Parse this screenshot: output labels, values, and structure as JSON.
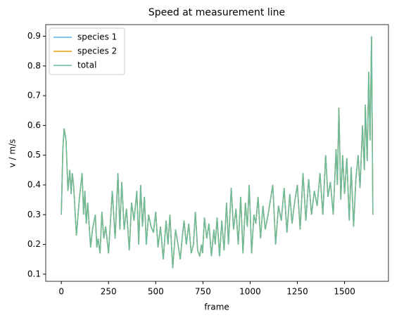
{
  "chart_data": {
    "type": "line",
    "title": "Speed at measurement line",
    "xlabel": "frame",
    "ylabel": "v / m/s",
    "x": [
      0,
      8,
      15,
      25,
      35,
      45,
      52,
      58,
      65,
      80,
      95,
      110,
      118,
      125,
      132,
      140,
      155,
      165,
      180,
      188,
      195,
      205,
      215,
      225,
      235,
      250,
      270,
      285,
      300,
      310,
      320,
      333,
      345,
      360,
      372,
      385,
      400,
      410,
      420,
      430,
      440,
      450,
      462,
      475,
      488,
      500,
      512,
      525,
      540,
      555,
      565,
      575,
      590,
      605,
      618,
      630,
      640,
      650,
      662,
      675,
      688,
      700,
      710,
      722,
      733,
      742,
      748,
      758,
      770,
      782,
      795,
      808,
      815,
      825,
      838,
      850,
      862,
      875,
      885,
      900,
      912,
      925,
      937,
      950,
      962,
      975,
      985,
      995,
      1008,
      1020,
      1030,
      1042,
      1055,
      1068,
      1080,
      1095,
      1120,
      1135,
      1150,
      1165,
      1180,
      1195,
      1210,
      1222,
      1235,
      1250,
      1265,
      1280,
      1295,
      1310,
      1325,
      1340,
      1355,
      1370,
      1385,
      1400,
      1412,
      1425,
      1440,
      1455,
      1462,
      1470,
      1480,
      1490,
      1500,
      1512,
      1525,
      1535,
      1548,
      1560,
      1572,
      1582,
      1595,
      1605,
      1610,
      1620,
      1628,
      1635,
      1643,
      1650
    ],
    "series": [
      {
        "name": "species 1",
        "color": "#56b4e9",
        "values": [
          0.3,
          0.52,
          0.59,
          0.55,
          0.38,
          0.45,
          0.37,
          0.44,
          0.4,
          0.23,
          0.35,
          0.44,
          0.3,
          0.38,
          0.27,
          0.34,
          0.19,
          0.25,
          0.3,
          0.19,
          0.22,
          0.17,
          0.31,
          0.22,
          0.26,
          0.17,
          0.38,
          0.22,
          0.44,
          0.25,
          0.41,
          0.25,
          0.32,
          0.18,
          0.34,
          0.28,
          0.38,
          0.2,
          0.4,
          0.26,
          0.36,
          0.2,
          0.3,
          0.26,
          0.24,
          0.31,
          0.19,
          0.26,
          0.15,
          0.28,
          0.2,
          0.3,
          0.12,
          0.25,
          0.2,
          0.15,
          0.22,
          0.28,
          0.2,
          0.27,
          0.17,
          0.2,
          0.31,
          0.18,
          0.16,
          0.2,
          0.17,
          0.29,
          0.22,
          0.27,
          0.16,
          0.25,
          0.2,
          0.29,
          0.16,
          0.28,
          0.18,
          0.34,
          0.2,
          0.39,
          0.25,
          0.32,
          0.2,
          0.36,
          0.17,
          0.34,
          0.26,
          0.4,
          0.17,
          0.3,
          0.27,
          0.36,
          0.22,
          0.33,
          0.25,
          0.3,
          0.4,
          0.2,
          0.33,
          0.28,
          0.39,
          0.24,
          0.37,
          0.27,
          0.34,
          0.4,
          0.25,
          0.44,
          0.28,
          0.42,
          0.3,
          0.38,
          0.33,
          0.44,
          0.3,
          0.5,
          0.36,
          0.41,
          0.3,
          0.52,
          0.4,
          0.66,
          0.35,
          0.5,
          0.37,
          0.49,
          0.28,
          0.46,
          0.26,
          0.42,
          0.5,
          0.39,
          0.6,
          0.45,
          0.67,
          0.48,
          0.78,
          0.55,
          0.9,
          0.3
        ]
      },
      {
        "name": "species 2",
        "color": "#e69f00",
        "values": [
          0.3,
          0.52,
          0.59,
          0.55,
          0.38,
          0.45,
          0.37,
          0.44,
          0.4,
          0.23,
          0.35,
          0.44,
          0.3,
          0.38,
          0.27,
          0.34,
          0.19,
          0.25,
          0.3,
          0.19,
          0.22,
          0.17,
          0.31,
          0.22,
          0.26,
          0.17,
          0.38,
          0.22,
          0.44,
          0.25,
          0.41,
          0.25,
          0.32,
          0.18,
          0.34,
          0.28,
          0.38,
          0.2,
          0.4,
          0.26,
          0.36,
          0.2,
          0.3,
          0.26,
          0.24,
          0.31,
          0.19,
          0.26,
          0.15,
          0.28,
          0.2,
          0.3,
          0.12,
          0.25,
          0.2,
          0.15,
          0.22,
          0.28,
          0.2,
          0.27,
          0.17,
          0.2,
          0.31,
          0.18,
          0.16,
          0.2,
          0.17,
          0.29,
          0.22,
          0.27,
          0.16,
          0.25,
          0.2,
          0.29,
          0.16,
          0.28,
          0.18,
          0.34,
          0.2,
          0.39,
          0.25,
          0.32,
          0.2,
          0.36,
          0.17,
          0.34,
          0.26,
          0.4,
          0.17,
          0.3,
          0.27,
          0.36,
          0.22,
          0.33,
          0.25,
          0.3,
          0.4,
          0.2,
          0.33,
          0.28,
          0.39,
          0.24,
          0.37,
          0.27,
          0.34,
          0.4,
          0.25,
          0.44,
          0.28,
          0.42,
          0.3,
          0.38,
          0.33,
          0.44,
          0.3,
          0.5,
          0.36,
          0.41,
          0.3,
          0.52,
          0.4,
          0.66,
          0.35,
          0.5,
          0.37,
          0.49,
          0.28,
          0.46,
          0.26,
          0.42,
          0.5,
          0.39,
          0.6,
          0.45,
          0.67,
          0.48,
          0.78,
          0.55,
          0.9,
          0.3
        ]
      },
      {
        "name": "total",
        "color": "#6dbb9c",
        "values": [
          0.3,
          0.52,
          0.59,
          0.55,
          0.38,
          0.45,
          0.37,
          0.44,
          0.4,
          0.23,
          0.35,
          0.44,
          0.3,
          0.38,
          0.27,
          0.34,
          0.19,
          0.25,
          0.3,
          0.19,
          0.22,
          0.17,
          0.31,
          0.22,
          0.26,
          0.17,
          0.38,
          0.22,
          0.44,
          0.25,
          0.41,
          0.25,
          0.32,
          0.18,
          0.34,
          0.28,
          0.38,
          0.2,
          0.4,
          0.26,
          0.36,
          0.2,
          0.3,
          0.26,
          0.24,
          0.31,
          0.19,
          0.26,
          0.15,
          0.28,
          0.2,
          0.3,
          0.12,
          0.25,
          0.2,
          0.15,
          0.22,
          0.28,
          0.2,
          0.27,
          0.17,
          0.2,
          0.31,
          0.18,
          0.16,
          0.2,
          0.17,
          0.29,
          0.22,
          0.27,
          0.16,
          0.25,
          0.2,
          0.29,
          0.16,
          0.28,
          0.18,
          0.34,
          0.2,
          0.39,
          0.25,
          0.32,
          0.2,
          0.36,
          0.17,
          0.34,
          0.26,
          0.4,
          0.17,
          0.3,
          0.27,
          0.36,
          0.22,
          0.33,
          0.25,
          0.3,
          0.4,
          0.2,
          0.33,
          0.28,
          0.39,
          0.24,
          0.37,
          0.27,
          0.34,
          0.4,
          0.25,
          0.44,
          0.28,
          0.42,
          0.3,
          0.38,
          0.33,
          0.44,
          0.3,
          0.5,
          0.36,
          0.41,
          0.3,
          0.52,
          0.4,
          0.66,
          0.35,
          0.5,
          0.37,
          0.49,
          0.28,
          0.46,
          0.26,
          0.42,
          0.5,
          0.39,
          0.6,
          0.45,
          0.67,
          0.48,
          0.78,
          0.55,
          0.9,
          0.3
        ]
      }
    ],
    "xlim": [
      -82.5,
      1732.5
    ],
    "xticks": [
      0,
      250,
      500,
      750,
      1000,
      1250,
      1500
    ],
    "ylim": [
      0.076,
      0.939
    ],
    "yticks": [
      0.1,
      0.2,
      0.3,
      0.4,
      0.5,
      0.6,
      0.7,
      0.8,
      0.9
    ],
    "legend": "upper left"
  }
}
